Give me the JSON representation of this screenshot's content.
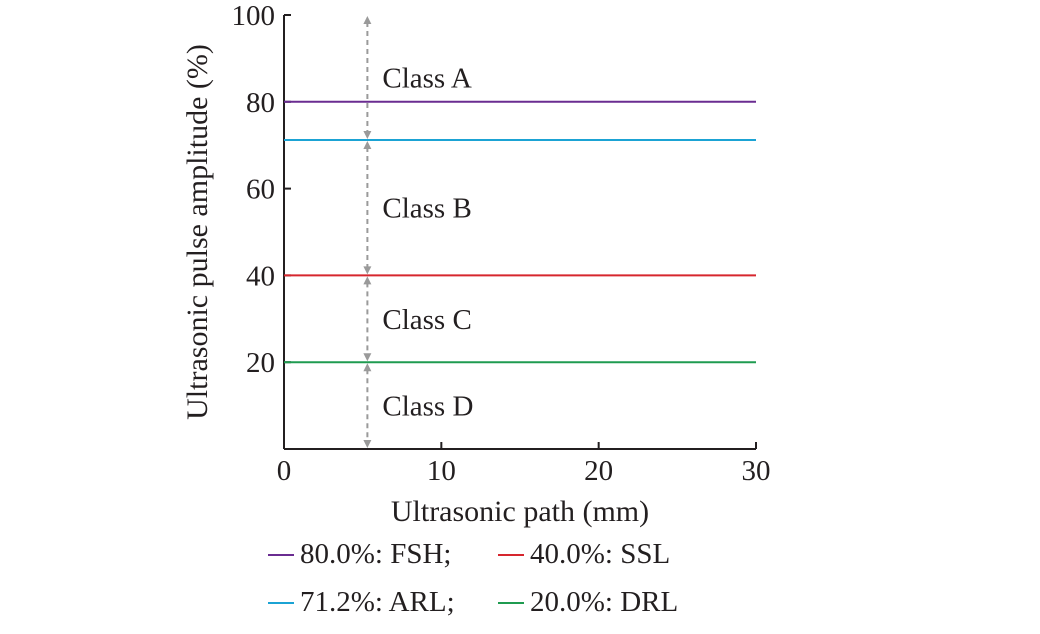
{
  "chart_data": {
    "type": "line",
    "xlabel": "Ultrasonic path (mm)",
    "ylabel": "Ultrasonic pulse amplitude (%)",
    "xlim": [
      0,
      30
    ],
    "ylim": [
      0,
      100
    ],
    "xticks": [
      0,
      10,
      20,
      30
    ],
    "yticks": [
      20,
      40,
      60,
      80,
      100
    ],
    "grid": false,
    "legend_position": "bottom",
    "series": [
      {
        "name": "80.0%: FSH",
        "color": "#6a2c91",
        "x": [
          0,
          30
        ],
        "y": [
          80,
          80
        ]
      },
      {
        "name": "71.2%: ARL",
        "color": "#1ba3d4",
        "x": [
          0,
          30
        ],
        "y": [
          71.2,
          71.2
        ]
      },
      {
        "name": "40.0%: SSL",
        "color": "#d6262e",
        "x": [
          0,
          30
        ],
        "y": [
          40,
          40
        ]
      },
      {
        "name": "20.0%: DRL",
        "color": "#1f9b50",
        "x": [
          0,
          30
        ],
        "y": [
          20,
          20
        ]
      }
    ],
    "annotations": [
      {
        "text": "Class A",
        "y_from": 71.2,
        "y_to": 100
      },
      {
        "text": "Class B",
        "y_from": 40,
        "y_to": 71.2
      },
      {
        "text": "Class C",
        "y_from": 20,
        "y_to": 40
      },
      {
        "text": "Class D",
        "y_from": 0,
        "y_to": 20
      }
    ],
    "annotation_marker_x": 5.3,
    "annotation_color": "#9a9a9a"
  },
  "legend": {
    "rows": [
      [
        {
          "label": "80.0%: FSH;",
          "color": "#6a2c91"
        },
        {
          "label": "40.0%: SSL",
          "color": "#d6262e"
        }
      ],
      [
        {
          "label": "71.2%: ARL;",
          "color": "#1ba3d4"
        },
        {
          "label": "20.0%: DRL",
          "color": "#1f9b50"
        }
      ]
    ]
  }
}
